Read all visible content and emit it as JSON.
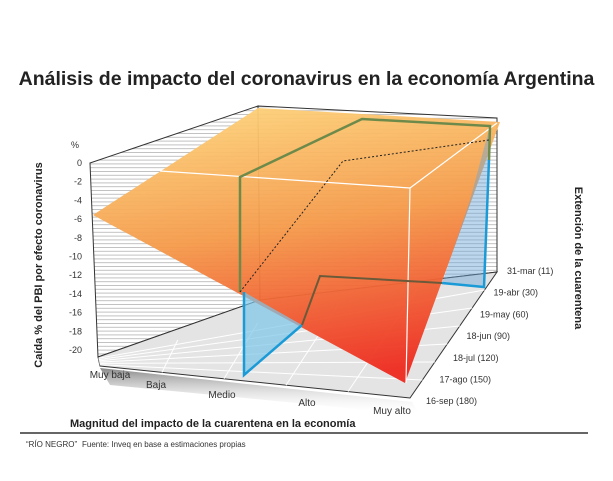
{
  "title": "Análisis de impacto del coronavirus en la economía Argentina",
  "chart_data": {
    "type": "surface-3d",
    "title": "Análisis de impacto del coronavirus en la economía Argentina",
    "zlabel": "Caída % del PBI por efecto coronavirus",
    "zunit": "%",
    "zlim": [
      -20,
      0
    ],
    "zticks": [
      "0",
      "-2",
      "-4",
      "-6",
      "-8",
      "-10",
      "-12",
      "-14",
      "-16",
      "-18",
      "-20"
    ],
    "xlabel": "Magnitud del impacto de la cuarentena en la economía",
    "xcategories": [
      "Muy baja",
      "Baja",
      "Medio",
      "Alto",
      "Muy alto"
    ],
    "ylabel": "Extención de la cuarentena",
    "ycategories": [
      "31-mar (11)",
      "19-abr (30)",
      "19-may (60)",
      "18-jun (90)",
      "18-jul (120)",
      "17-ago (150)",
      "16-sep (180)"
    ],
    "surface_corners": [
      {
        "x": "Muy baja",
        "y": "31-mar (11)",
        "z": 0
      },
      {
        "x": "Muy alto",
        "y": "31-mar (11)",
        "z": -1
      },
      {
        "x": "Muy baja",
        "y": "16-sep (180)",
        "z": -5.5
      },
      {
        "x": "Muy alto",
        "y": "16-sep (180)",
        "z": -20
      }
    ],
    "highlight": {
      "x": "Medio",
      "y": "19-abr (30)"
    },
    "grid": true,
    "colors": {
      "surface_low": "#ee2a1f",
      "surface_high": "#fdd27a",
      "highlight": "#1a9ad6",
      "green": "#6e8a4a"
    }
  },
  "footer": {
    "source_brand": "“RÍO NEGRO”",
    "source": "Fuente: Inveq en base a estimaciones propias"
  }
}
